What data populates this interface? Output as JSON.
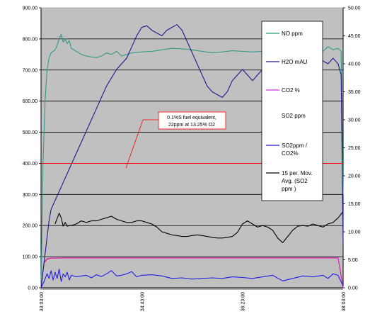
{
  "chart_data": {
    "type": "line",
    "title": "",
    "xlabel": "",
    "ylabel": "",
    "ylim": [
      0,
      900
    ],
    "y2lim": [
      0,
      50
    ],
    "x_ticks": [
      "33:03:00",
      "34:43:00",
      "36:23:00",
      "38:03:00"
    ],
    "x_range": [
      0,
      300
    ],
    "y_ticks": [
      "0.00",
      "100.00",
      "200.00",
      "300.00",
      "400.00",
      "500.00",
      "600.00",
      "700.00",
      "800.00",
      "900.00"
    ],
    "y2_ticks": [
      "0.00",
      "5.00",
      "10.00",
      "15.00",
      "20.00",
      "25.00",
      "30.00",
      "35.00",
      "40.00",
      "45.00",
      "50.00"
    ],
    "grid": "horizontal",
    "plot_background": "#c0c0c0",
    "legend_position": "right-inside",
    "series": [
      {
        "name": "NO ppm",
        "color": "#339988",
        "axis": "left",
        "x": [
          0,
          2,
          4,
          6,
          8,
          10,
          12,
          14,
          16,
          18,
          20,
          22,
          24,
          26,
          28,
          30,
          35,
          40,
          45,
          50,
          55,
          60,
          65,
          70,
          75,
          80,
          90,
          100,
          110,
          120,
          130,
          140,
          150,
          160,
          170,
          180,
          190,
          200,
          210,
          220,
          230,
          240,
          250,
          260,
          270,
          280,
          285,
          290,
          295,
          298,
          300
        ],
        "y": [
          0,
          400,
          600,
          700,
          740,
          755,
          760,
          765,
          780,
          800,
          815,
          790,
          800,
          785,
          795,
          770,
          760,
          750,
          745,
          742,
          740,
          745,
          755,
          750,
          760,
          745,
          755,
          758,
          760,
          765,
          770,
          768,
          765,
          760,
          755,
          758,
          762,
          760,
          758,
          760,
          762,
          758,
          760,
          765,
          770,
          760,
          775,
          765,
          770,
          760,
          300
        ]
      },
      {
        "name": "H2O mAU",
        "color": "#1a1a8c",
        "axis": "right",
        "x": [
          0,
          2,
          4,
          6,
          8,
          10,
          15,
          20,
          25,
          30,
          35,
          40,
          45,
          50,
          55,
          60,
          65,
          70,
          75,
          80,
          85,
          90,
          95,
          100,
          105,
          110,
          115,
          120,
          125,
          130,
          135,
          140,
          145,
          150,
          155,
          160,
          165,
          170,
          175,
          180,
          185,
          190,
          195,
          200,
          205,
          210,
          215,
          220,
          225,
          230,
          235,
          240,
          245,
          250,
          255,
          260,
          265,
          270,
          275,
          280,
          285,
          290,
          295,
          298,
          300
        ],
        "y": [
          0,
          3,
          6,
          9,
          12,
          14,
          16,
          18,
          20,
          22,
          24,
          26,
          28,
          30,
          32,
          34,
          36,
          37.5,
          39,
          40,
          41,
          43,
          45,
          46.5,
          46.8,
          46,
          45.5,
          45,
          46,
          46.5,
          47,
          46,
          44,
          42,
          40,
          38,
          36,
          35,
          34.5,
          34,
          35,
          37,
          38,
          39,
          38,
          37,
          38,
          39,
          39.5,
          40,
          39,
          38,
          37,
          37,
          38,
          39,
          40,
          40.5,
          41,
          40.5,
          40,
          41,
          40,
          38,
          8
        ]
      },
      {
        "name": "CO2 %",
        "color": "#cc33cc",
        "axis": "right",
        "x": [
          0,
          3,
          6,
          10,
          20,
          40,
          60,
          80,
          100,
          120,
          140,
          160,
          180,
          200,
          220,
          240,
          260,
          280,
          295,
          300
        ],
        "y": [
          0,
          4.5,
          5.2,
          5.3,
          5.35,
          5.35,
          5.35,
          5.35,
          5.35,
          5.35,
          5.35,
          5.35,
          5.35,
          5.35,
          5.35,
          5.35,
          5.35,
          5.35,
          5.35,
          0
        ]
      },
      {
        "name": "SO2 ppm",
        "color": "#ff0000",
        "axis": "left",
        "x": [
          0,
          3,
          6,
          10,
          20,
          40,
          60,
          80,
          100,
          120,
          140,
          160,
          180,
          200,
          220,
          240,
          260,
          280,
          295,
          300
        ],
        "y": [
          0,
          80,
          92,
          95,
          96,
          96,
          96,
          96,
          96,
          96,
          96,
          96,
          96,
          96,
          96,
          96,
          96,
          96,
          96,
          0
        ]
      },
      {
        "name": "SO2ppm / CO2%",
        "color": "#1e1ee6",
        "axis": "left",
        "x": [
          0,
          3,
          6,
          8,
          10,
          12,
          14,
          16,
          18,
          20,
          22,
          24,
          26,
          28,
          30,
          35,
          40,
          45,
          50,
          55,
          60,
          65,
          70,
          75,
          80,
          85,
          90,
          95,
          100,
          110,
          120,
          130,
          140,
          150,
          160,
          170,
          180,
          190,
          200,
          210,
          220,
          230,
          240,
          250,
          260,
          270,
          280,
          285,
          290,
          295,
          300
        ],
        "y": [
          0,
          20,
          45,
          30,
          55,
          25,
          50,
          30,
          60,
          20,
          45,
          35,
          50,
          25,
          40,
          35,
          38,
          40,
          32,
          42,
          36,
          45,
          55,
          38,
          40,
          45,
          52,
          35,
          40,
          42,
          38,
          30,
          32,
          28,
          30,
          32,
          30,
          35,
          33,
          30,
          35,
          40,
          22,
          30,
          38,
          35,
          40,
          30,
          45,
          40,
          5
        ]
      },
      {
        "name": "15 per. Mov. Avg. (SO2 ppm )",
        "color": "#000000",
        "axis": "left",
        "x": [
          14,
          18,
          20,
          22,
          24,
          26,
          28,
          30,
          35,
          40,
          45,
          50,
          55,
          60,
          65,
          70,
          75,
          80,
          85,
          90,
          95,
          100,
          105,
          110,
          115,
          120,
          125,
          130,
          135,
          140,
          145,
          150,
          155,
          160,
          165,
          170,
          175,
          180,
          185,
          190,
          195,
          200,
          205,
          210,
          215,
          220,
          225,
          230,
          235,
          240,
          245,
          250,
          255,
          260,
          265,
          270,
          275,
          280,
          285,
          290,
          295,
          300
        ],
        "y": [
          205,
          240,
          225,
          198,
          210,
          198,
          200,
          200,
          205,
          215,
          210,
          215,
          215,
          220,
          225,
          230,
          220,
          215,
          210,
          210,
          215,
          215,
          210,
          205,
          195,
          180,
          175,
          170,
          168,
          165,
          165,
          168,
          170,
          168,
          165,
          162,
          160,
          160,
          162,
          165,
          178,
          205,
          215,
          205,
          195,
          200,
          195,
          185,
          160,
          145,
          165,
          185,
          198,
          200,
          198,
          205,
          200,
          195,
          205,
          210,
          225,
          245
        ]
      }
    ],
    "annotation": {
      "text_lines": [
        "0.1%S fuel  equivalent,",
        "22ppm at 13.25% O2"
      ],
      "reference_value": 400,
      "color": "#ff0000"
    }
  }
}
